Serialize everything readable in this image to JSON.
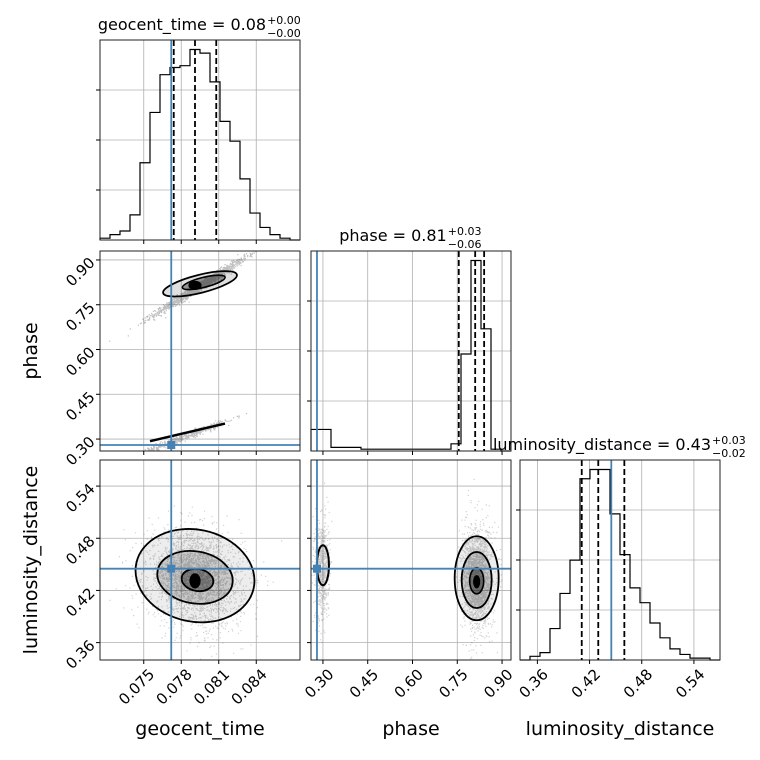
{
  "chart_data": {
    "type": "corner",
    "parameters": [
      "geocent_time",
      "phase",
      "luminosity_distance"
    ],
    "truth": {
      "geocent_time": 0.0772,
      "phase": 0.28,
      "luminosity_distance": 0.445
    },
    "diagonal": [
      {
        "name": "geocent_time",
        "title_prefix": "geocent_time = 0.08",
        "title_sup": "+0.00",
        "title_sub": "−0.00",
        "xlim": [
          0.0715,
          0.0875
        ],
        "bins": [
          0.0715,
          0.0723,
          0.0731,
          0.0739,
          0.0747,
          0.0755,
          0.0763,
          0.0771,
          0.0779,
          0.0787,
          0.0795,
          0.0803,
          0.0811,
          0.0819,
          0.0827,
          0.0835,
          0.0843,
          0.0851,
          0.0859,
          0.0867,
          0.0875
        ],
        "counts": [
          1,
          3,
          5,
          14,
          43,
          71,
          92,
          96,
          97,
          106,
          104,
          88,
          66,
          55,
          34,
          15,
          7,
          3,
          1,
          0
        ],
        "quantiles": [
          0.0774,
          0.0791,
          0.0808
        ],
        "xticks": [
          0.075,
          0.078,
          0.081,
          0.084
        ],
        "xtick_labels": [
          "0.075",
          "0.078",
          "0.081",
          "0.084"
        ]
      },
      {
        "name": "phase",
        "title_prefix": "phase = 0.81",
        "title_sup": "+0.03",
        "title_sub": "−0.06",
        "xlim": [
          0.26,
          0.93
        ],
        "bins": [
          0.26,
          0.2935,
          0.327,
          0.3605,
          0.394,
          0.4275,
          0.461,
          0.4945,
          0.528,
          0.5615,
          0.595,
          0.6285,
          0.662,
          0.6955,
          0.729,
          0.7625,
          0.796,
          0.8295,
          0.863,
          0.8965,
          0.93
        ],
        "counts": [
          12,
          12,
          2,
          2,
          2,
          1,
          1,
          1,
          1,
          1,
          1,
          1,
          1,
          1,
          4,
          54,
          106,
          68,
          1,
          0
        ],
        "quantiles": [
          0.755,
          0.81,
          0.84
        ],
        "xticks": [
          0.3,
          0.45,
          0.6,
          0.75,
          0.9
        ],
        "xtick_labels": [
          "0.30",
          "0.45",
          "0.60",
          "0.75",
          "0.90"
        ]
      },
      {
        "name": "luminosity_distance",
        "title_prefix": "luminosity_distance = 0.43",
        "title_sup": "+0.03",
        "title_sub": "−0.02",
        "xlim": [
          0.34,
          0.57
        ],
        "bins": [
          0.34,
          0.3515,
          0.363,
          0.3745,
          0.386,
          0.3975,
          0.409,
          0.4205,
          0.432,
          0.4435,
          0.455,
          0.4665,
          0.478,
          0.4895,
          0.501,
          0.5125,
          0.524,
          0.5355,
          0.547,
          0.5585,
          0.57
        ],
        "counts": [
          0,
          2,
          4,
          17,
          36,
          54,
          98,
          103,
          103,
          79,
          57,
          39,
          31,
          20,
          12,
          6,
          3,
          1,
          1,
          0
        ],
        "quantiles": [
          0.411,
          0.43,
          0.46
        ],
        "xticks": [
          0.36,
          0.42,
          0.48,
          0.54
        ],
        "xtick_labels": [
          "0.36",
          "0.42",
          "0.48",
          "0.54"
        ]
      }
    ],
    "offdiagonal": [
      {
        "x": "geocent_time",
        "y": "phase",
        "xlim": [
          0.0715,
          0.0875
        ],
        "ylim": [
          0.26,
          0.93
        ],
        "yticks": [
          0.3,
          0.45,
          0.6,
          0.75,
          0.9
        ],
        "ytick_labels": [
          "0.30",
          "0.45",
          "0.60",
          "0.75",
          "0.90"
        ]
      },
      {
        "x": "geocent_time",
        "y": "luminosity_distance",
        "xlim": [
          0.0715,
          0.0875
        ],
        "ylim": [
          0.34,
          0.57
        ],
        "yticks": [
          0.36,
          0.42,
          0.48,
          0.54
        ],
        "ytick_labels": [
          "0.36",
          "0.42",
          "0.48",
          "0.54"
        ]
      },
      {
        "x": "phase",
        "y": "luminosity_distance",
        "xlim": [
          0.26,
          0.93
        ],
        "ylim": [
          0.34,
          0.57
        ]
      }
    ],
    "axis_labels": {
      "geocent_time": "geocent_time",
      "phase": "phase",
      "luminosity_distance": "luminosity_distance"
    },
    "grid": true,
    "truth_color": "#4682b4",
    "hist_color": "#000000"
  }
}
